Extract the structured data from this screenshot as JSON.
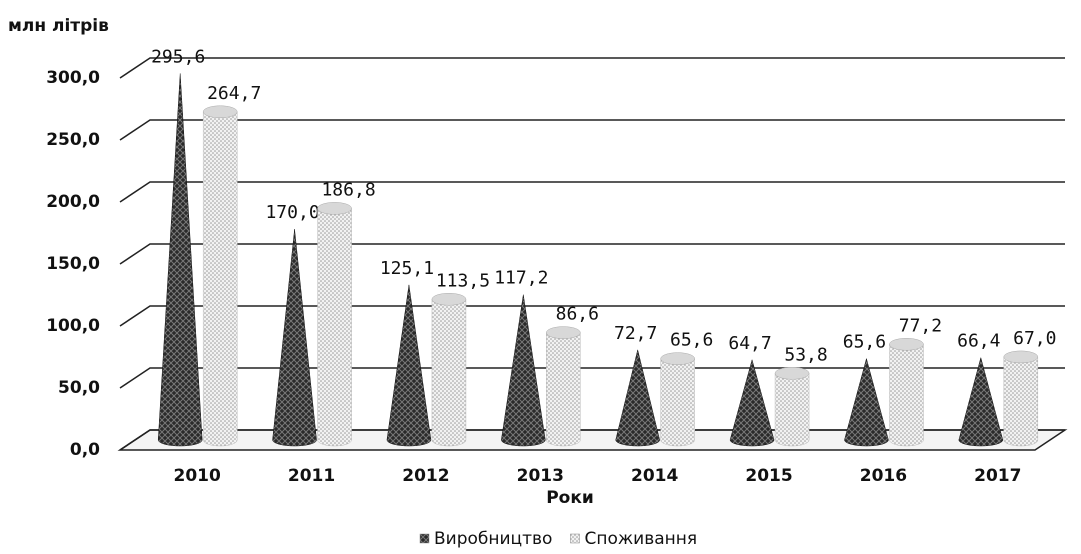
{
  "chart_data": {
    "type": "bar3d",
    "y_axis_label": "млн літрів",
    "x_axis_label": "Роки",
    "categories": [
      "2010",
      "2011",
      "2012",
      "2013",
      "2014",
      "2015",
      "2016",
      "2017"
    ],
    "series": [
      {
        "name": "Виробництво",
        "color": "#333333",
        "shape": "cone",
        "values": [
          295.6,
          170.0,
          125.1,
          117.2,
          72.7,
          64.7,
          65.6,
          66.4
        ],
        "value_labels": [
          "295,6",
          "170,0",
          "125,1",
          "117,2",
          "72,7",
          "64,7",
          "65,6",
          "66,4"
        ]
      },
      {
        "name": "Споживання",
        "color": "#dddddd",
        "shape": "cylinder",
        "values": [
          264.7,
          186.8,
          113.5,
          86.6,
          65.6,
          53.8,
          77.2,
          67.0
        ],
        "value_labels": [
          "264,7",
          "186,8",
          "113,5",
          "86,6",
          "65,6",
          "53,8",
          "77,2",
          "67,0"
        ]
      }
    ],
    "ylim": [
      0,
      300
    ],
    "yticks": [
      {
        "value": 0,
        "label": "0,0"
      },
      {
        "value": 50,
        "label": "50,0"
      },
      {
        "value": 100,
        "label": "100,0"
      },
      {
        "value": 150,
        "label": "150,0"
      },
      {
        "value": 200,
        "label": "200,0"
      },
      {
        "value": 250,
        "label": "250,0"
      },
      {
        "value": 300,
        "label": "300,0"
      }
    ],
    "grid": true
  }
}
